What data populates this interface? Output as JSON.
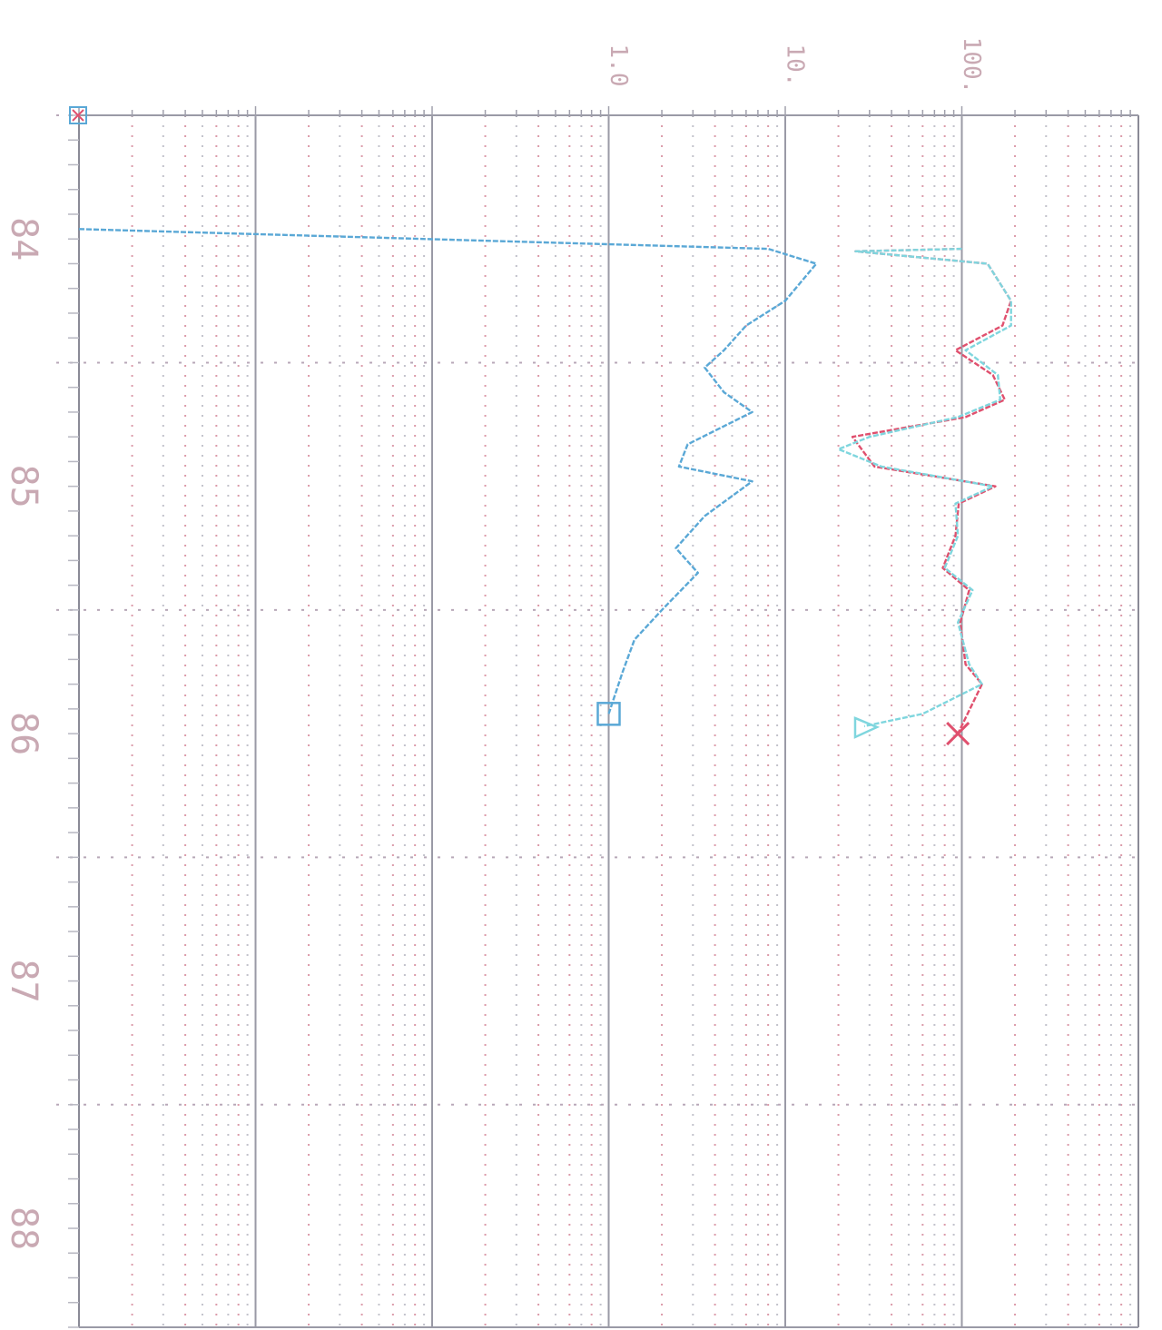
{
  "chart_data": {
    "type": "line",
    "orientation": "rotated-90",
    "title": "",
    "x_axis": {
      "scale": "log",
      "range": [
        0.001,
        1000
      ],
      "tick_labels": [
        "1.0",
        "10.",
        "100."
      ],
      "tick_values": [
        1,
        10,
        100
      ]
    },
    "depth_axis": {
      "range": [
        83.5,
        88.4
      ],
      "tick_labels": [
        "84",
        "85",
        "86",
        "87",
        "88"
      ],
      "tick_values": [
        84,
        85,
        86,
        87,
        88
      ]
    },
    "grid": true,
    "series": [
      {
        "color": "#e0506e",
        "marker": "x",
        "points": [
          {
            "depth": 84.04,
            "value": 100
          },
          {
            "depth": 84.05,
            "value": 25
          },
          {
            "depth": 84.1,
            "value": 140
          },
          {
            "depth": 84.25,
            "value": 190
          },
          {
            "depth": 84.35,
            "value": 170
          },
          {
            "depth": 84.45,
            "value": 92
          },
          {
            "depth": 84.55,
            "value": 150
          },
          {
            "depth": 84.65,
            "value": 175
          },
          {
            "depth": 84.72,
            "value": 105
          },
          {
            "depth": 84.8,
            "value": 24
          },
          {
            "depth": 84.92,
            "value": 32
          },
          {
            "depth": 85.0,
            "value": 155
          },
          {
            "depth": 85.07,
            "value": 96
          },
          {
            "depth": 85.2,
            "value": 92
          },
          {
            "depth": 85.33,
            "value": 78
          },
          {
            "depth": 85.42,
            "value": 110
          },
          {
            "depth": 85.55,
            "value": 98
          },
          {
            "depth": 85.72,
            "value": 105
          },
          {
            "depth": 85.8,
            "value": 130
          },
          {
            "depth": 86.0,
            "value": 95
          }
        ]
      },
      {
        "color": "#7fd6de",
        "marker": "triangle",
        "points": [
          {
            "depth": 84.04,
            "value": 100
          },
          {
            "depth": 84.05,
            "value": 25
          },
          {
            "depth": 84.1,
            "value": 140
          },
          {
            "depth": 84.25,
            "value": 190
          },
          {
            "depth": 84.35,
            "value": 190
          },
          {
            "depth": 84.45,
            "value": 105
          },
          {
            "depth": 84.55,
            "value": 160
          },
          {
            "depth": 84.65,
            "value": 165
          },
          {
            "depth": 84.72,
            "value": 95
          },
          {
            "depth": 84.8,
            "value": 30
          },
          {
            "depth": 84.85,
            "value": 20
          },
          {
            "depth": 84.92,
            "value": 35
          },
          {
            "depth": 85.0,
            "value": 150
          },
          {
            "depth": 85.07,
            "value": 92
          },
          {
            "depth": 85.2,
            "value": 95
          },
          {
            "depth": 85.33,
            "value": 80
          },
          {
            "depth": 85.42,
            "value": 115
          },
          {
            "depth": 85.55,
            "value": 95
          },
          {
            "depth": 85.72,
            "value": 110
          },
          {
            "depth": 85.8,
            "value": 130
          },
          {
            "depth": 85.92,
            "value": 60
          },
          {
            "depth": 85.97,
            "value": 28
          }
        ]
      },
      {
        "color": "#5aa8d6",
        "marker": "square",
        "points": [
          {
            "depth": 83.96,
            "value": 0.001
          },
          {
            "depth": 84.04,
            "value": 8
          },
          {
            "depth": 84.1,
            "value": 15
          },
          {
            "depth": 84.25,
            "value": 10
          },
          {
            "depth": 84.35,
            "value": 6
          },
          {
            "depth": 84.45,
            "value": 4.5
          },
          {
            "depth": 84.52,
            "value": 3.5
          },
          {
            "depth": 84.62,
            "value": 4.5
          },
          {
            "depth": 84.7,
            "value": 6.5
          },
          {
            "depth": 84.83,
            "value": 2.8
          },
          {
            "depth": 84.92,
            "value": 2.5
          },
          {
            "depth": 84.98,
            "value": 6.5
          },
          {
            "depth": 85.12,
            "value": 3.5
          },
          {
            "depth": 85.25,
            "value": 2.4
          },
          {
            "depth": 85.35,
            "value": 3.2
          },
          {
            "depth": 85.5,
            "value": 2.0
          },
          {
            "depth": 85.62,
            "value": 1.4
          },
          {
            "depth": 85.75,
            "value": 1.2
          },
          {
            "depth": 85.92,
            "value": 1.0
          }
        ]
      }
    ]
  }
}
